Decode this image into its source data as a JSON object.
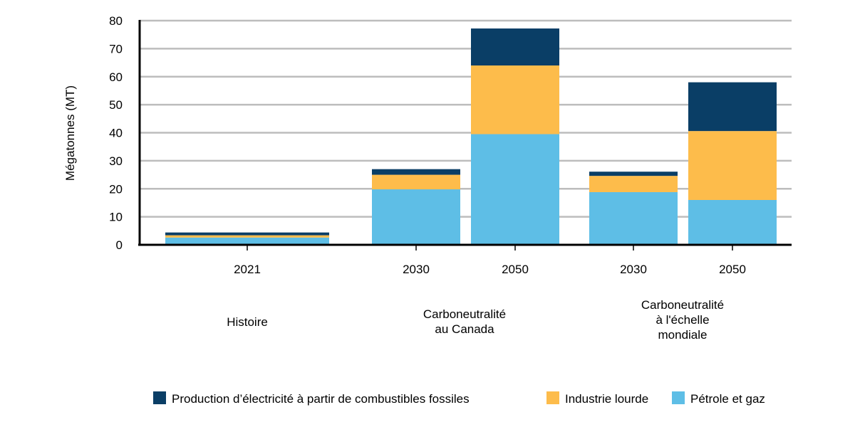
{
  "chart_data": {
    "type": "bar",
    "stacked": true,
    "ylabel": "Mégatonnes (MT)",
    "ylim": [
      0,
      80
    ],
    "yticks": [
      0,
      10,
      20,
      30,
      40,
      50,
      60,
      70,
      80
    ],
    "grid": true,
    "legend_position": "bottom-right",
    "categories": [
      "2021",
      "2030",
      "2050",
      "2030",
      "2050"
    ],
    "groups": [
      {
        "lines": [
          "Histoire"
        ],
        "categories": [
          0
        ]
      },
      {
        "lines": [
          "Carboneutralité",
          "au Canada"
        ],
        "categories": [
          1,
          2
        ]
      },
      {
        "lines": [
          "Carboneutralité",
          "à l'échelle",
          "mondiale"
        ],
        "categories": [
          3,
          4
        ]
      }
    ],
    "series": [
      {
        "name": "Pétrole et gaz",
        "color": "#5ebee6",
        "values": [
          2.6,
          19.8,
          39.5,
          18.8,
          16.0
        ]
      },
      {
        "name": "Industrie lourde",
        "color": "#fdbc4b",
        "values": [
          0.8,
          5.2,
          24.5,
          5.8,
          24.6
        ]
      },
      {
        "name": "Production d’électricité à partir de combustibles fossiles",
        "color": "#0a3e66",
        "values": [
          1.0,
          2.0,
          13.2,
          1.5,
          17.4
        ]
      }
    ],
    "legend_order": [
      2,
      1,
      0
    ]
  }
}
